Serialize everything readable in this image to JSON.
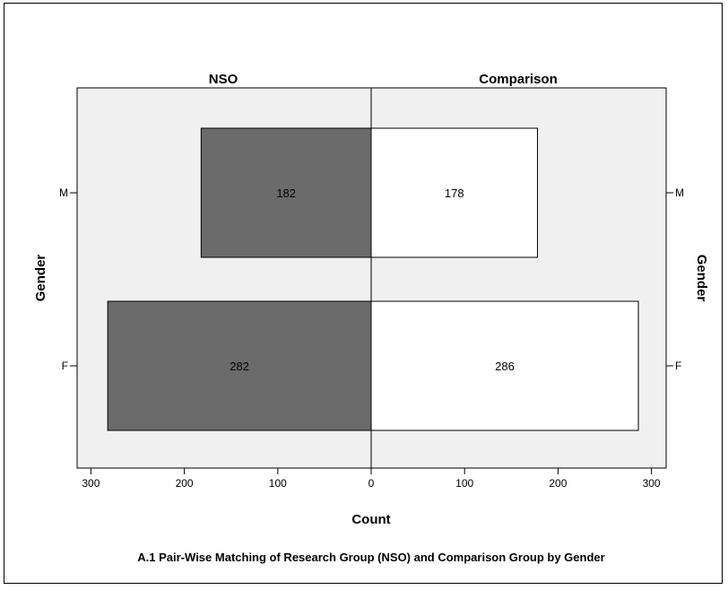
{
  "chart_data": {
    "type": "bar",
    "orientation": "horizontal-population-pyramid",
    "panels": [
      "NSO",
      "Comparison"
    ],
    "categories": [
      "M",
      "F"
    ],
    "series": [
      {
        "name": "NSO",
        "values": [
          182,
          282
        ],
        "color": "#6b6b6b"
      },
      {
        "name": "Comparison",
        "values": [
          178,
          286
        ],
        "color": "#ffffff"
      }
    ],
    "xlabel": "Count",
    "ylabel_left": "Gender",
    "ylabel_right": "Gender",
    "xlim": [
      0,
      300
    ],
    "xticks": [
      0,
      100,
      200,
      300
    ],
    "xtick_labels_left": [
      "300",
      "200",
      "100",
      "0"
    ],
    "xtick_labels_right": [
      "0",
      "100",
      "200",
      "300"
    ],
    "caption": "A.1  Pair-Wise Matching of Research Group (NSO) and Comparison Group by Gender",
    "plot_background": "#f0f0f0",
    "grid": false,
    "legend": "none"
  }
}
